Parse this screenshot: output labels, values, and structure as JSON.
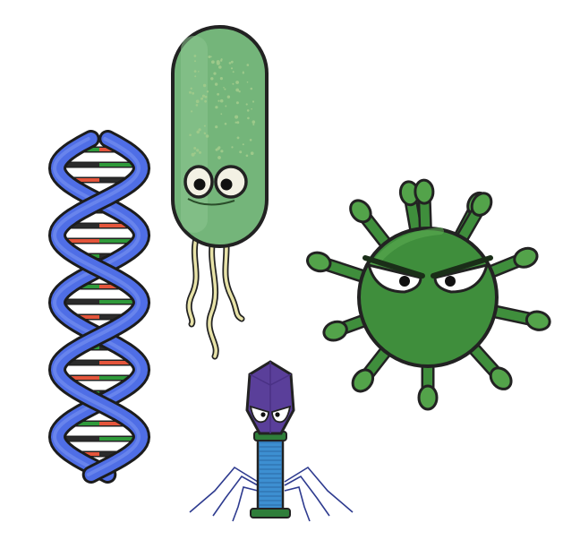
{
  "illustration": {
    "characters": [
      {
        "id": "dna",
        "icon": "dna-double-helix-icon",
        "colors": {
          "backbone": "#4f6ee6",
          "rung_a": "#e4553b",
          "rung_b": "#2f9a3a",
          "rung_c": "#2b2b2b"
        }
      },
      {
        "id": "bacterium",
        "icon": "bacterium-icon",
        "colors": {
          "body": "#74b57a",
          "flagella": "#e8e3a8",
          "speckle": "#9dc98a"
        }
      },
      {
        "id": "virus",
        "icon": "virus-icon",
        "colors": {
          "body": "#3f8e3c",
          "highlight": "#53a34a"
        }
      },
      {
        "id": "bacteriophage",
        "icon": "bacteriophage-icon",
        "colors": {
          "head": "#5a3f9a",
          "tail": "#3d8fd1",
          "collar": "#2f7e3a",
          "legs": "#2e3b8f"
        }
      }
    ]
  }
}
